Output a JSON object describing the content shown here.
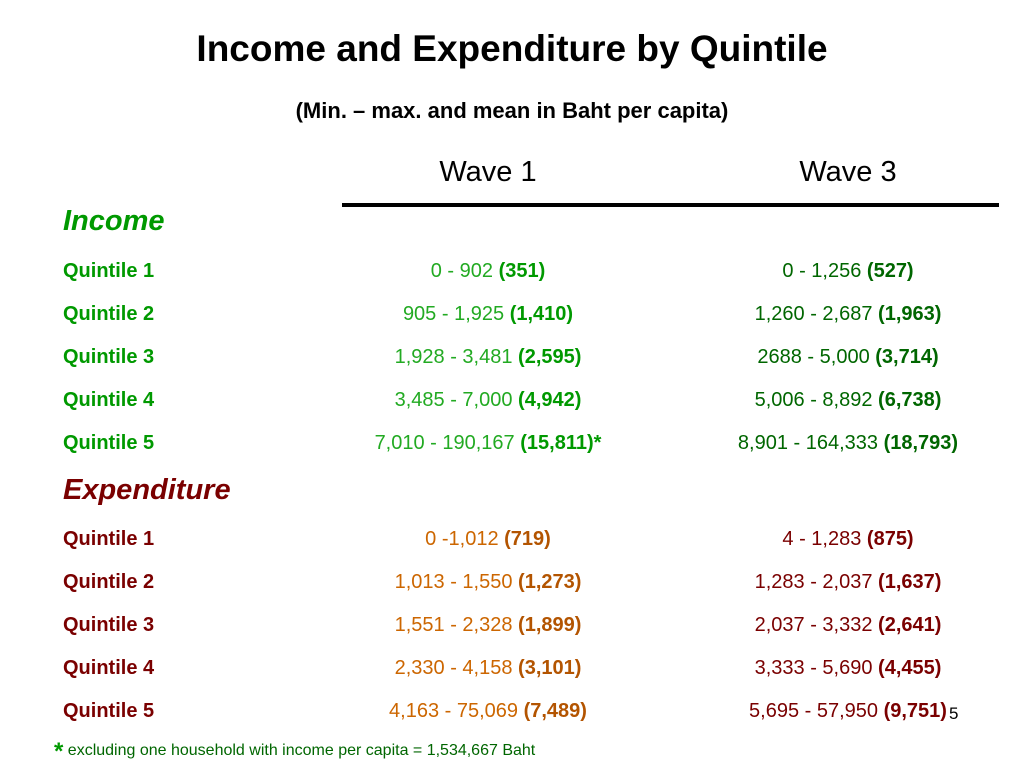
{
  "title": "Income and Expenditure by Quintile",
  "subtitle": "(Min. – max. and mean in Baht per capita)",
  "columns": [
    "Wave 1",
    "Wave 3"
  ],
  "colors": {
    "income": "#009900",
    "expenditure_label": "#7a0000",
    "expenditure_wave1": "#cc6600"
  },
  "income": {
    "heading": "Income",
    "rows": [
      {
        "label": "Quintile 1",
        "w1_range": "0 - 902 ",
        "w1_mean": "(351)",
        "w1_suffix": "",
        "w3_range": "0 - 1,256 ",
        "w3_mean": "(527)"
      },
      {
        "label": "Quintile 2",
        "w1_range": "905 - 1,925 ",
        "w1_mean": "(1,410)",
        "w1_suffix": "",
        "w3_range": "1,260 - 2,687 ",
        "w3_mean": "(1,963)"
      },
      {
        "label": "Quintile 3",
        "w1_range": "1,928 - 3,481 ",
        "w1_mean": "(2,595)",
        "w1_suffix": "",
        "w3_range": "2688 - 5,000 ",
        "w3_mean": "(3,714)"
      },
      {
        "label": "Quintile 4",
        "w1_range": "3,485 - 7,000 ",
        "w1_mean": "(4,942)",
        "w1_suffix": "",
        "w3_range": "5,006 - 8,892 ",
        "w3_mean": "(6,738)"
      },
      {
        "label": "Quintile 5",
        "w1_range": "7,010 - 190,167 ",
        "w1_mean": "(15,811)",
        "w1_suffix": "*",
        "w3_range": "8,901 - 164,333 ",
        "w3_mean": "(18,793)"
      }
    ]
  },
  "expenditure": {
    "heading": "Expenditure",
    "rows": [
      {
        "label": "Quintile 1",
        "w1_range": "0 -1,012 ",
        "w1_mean": "(719)",
        "w3_range": "4 - 1,283 ",
        "w3_mean": "(875)"
      },
      {
        "label": "Quintile 2",
        "w1_range": "1,013 - 1,550 ",
        "w1_mean": "(1,273)",
        "w3_range": "1,283 - 2,037 ",
        "w3_mean": "(1,637)"
      },
      {
        "label": "Quintile 3",
        "w1_range": "1,551 - 2,328 ",
        "w1_mean": "(1,899)",
        "w3_range": "2,037 - 3,332 ",
        "w3_mean": "(2,641)"
      },
      {
        "label": "Quintile 4",
        "w1_range": "2,330 - 4,158 ",
        "w1_mean": "(3,101)",
        "w3_range": "3,333 - 5,690 ",
        "w3_mean": "(4,455)"
      },
      {
        "label": "Quintile 5",
        "w1_range": "4,163 - 75,069 ",
        "w1_mean": "(7,489)",
        "w3_range": "5,695 - 57,950 ",
        "w3_mean": "(9,751)"
      }
    ]
  },
  "footnote": {
    "star": "*",
    "text": "excluding one household with income per capita = 1,534,667 Baht"
  },
  "page_number": "5"
}
